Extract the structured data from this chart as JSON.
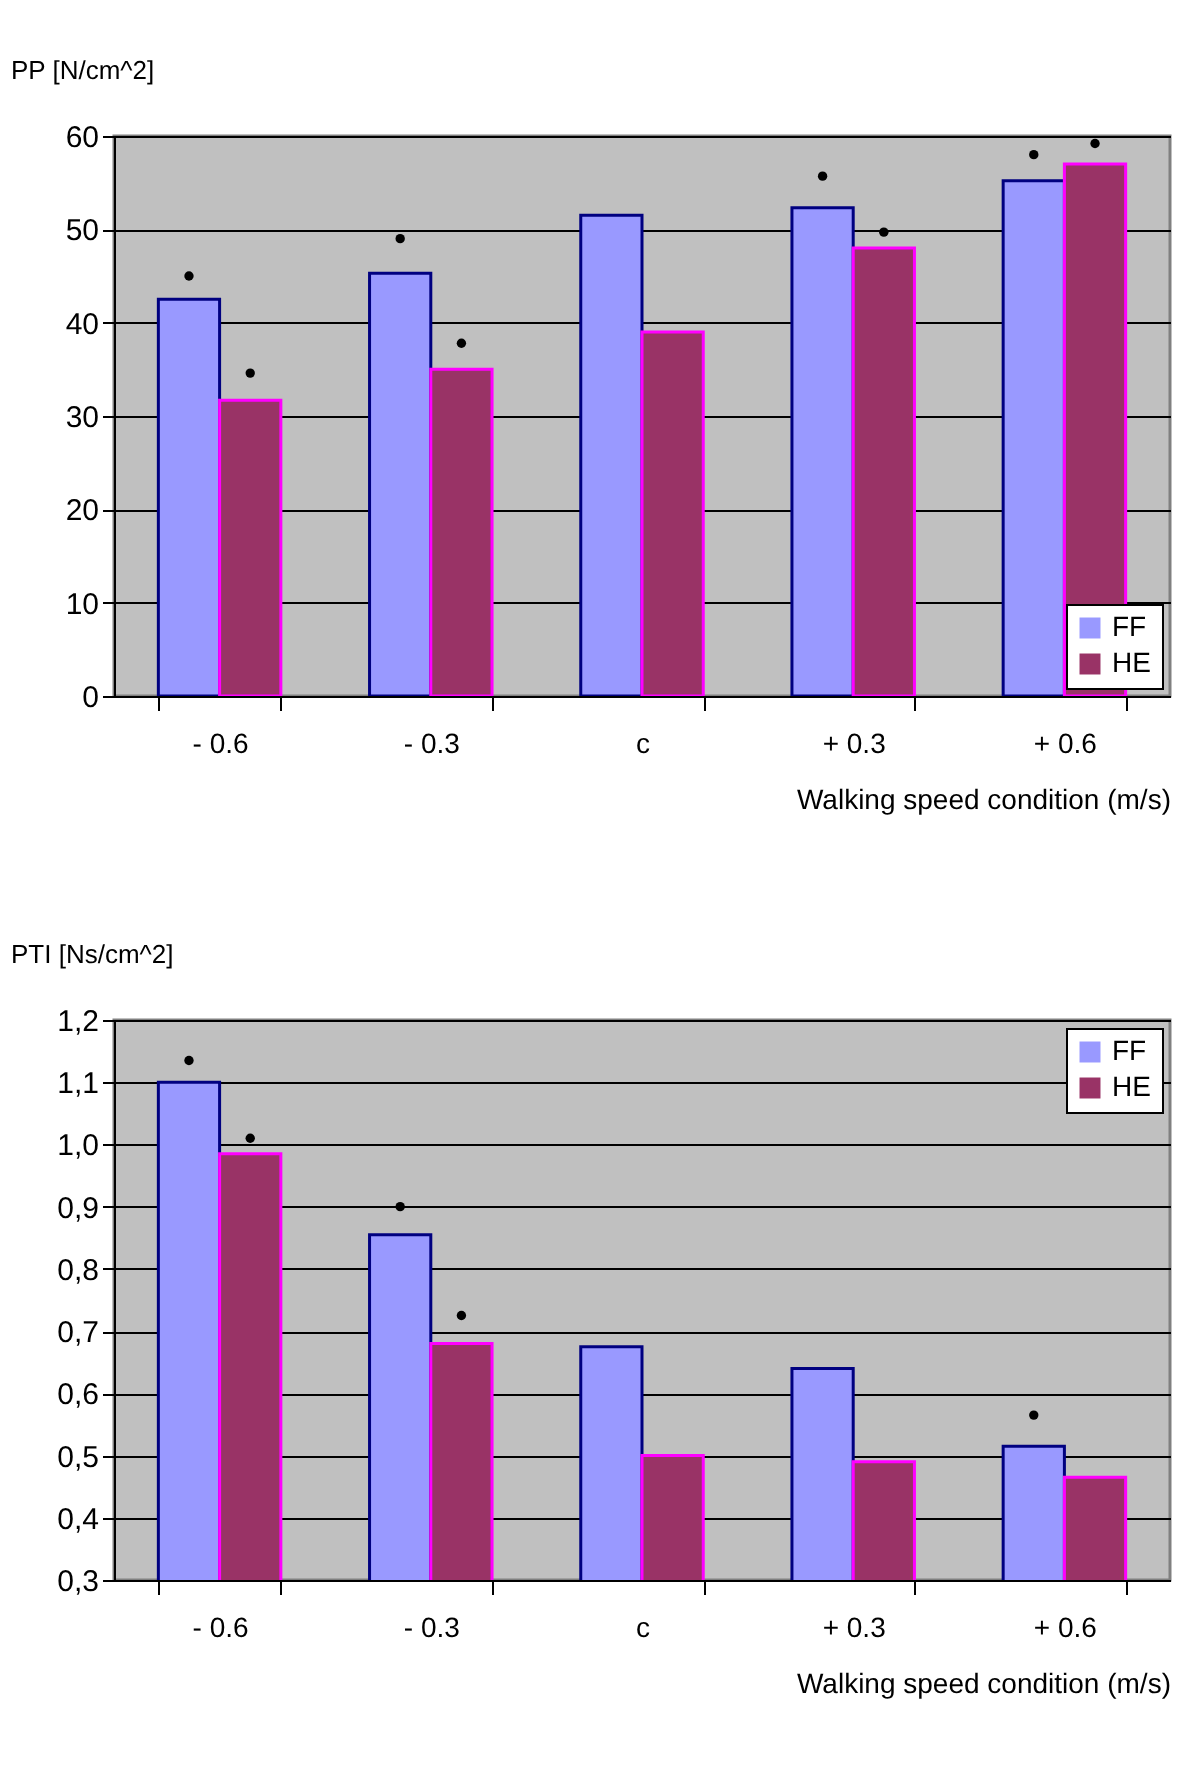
{
  "chart_data": [
    {
      "type": "bar",
      "ylabel": "PP [N/cm^2]",
      "xlabel": "Walking speed condition (m/s)",
      "categories": [
        "- 0.6",
        "- 0.3",
        "c",
        "+ 0.3",
        "+ 0.6"
      ],
      "series": [
        {
          "name": "FF",
          "color": "#9999ff",
          "values": [
            42.5,
            45.3,
            51.5,
            52.3,
            55.2
          ]
        },
        {
          "name": "HE",
          "color": "#993366",
          "values": [
            31.7,
            35,
            39,
            48,
            57
          ]
        },
        {
          "type": "scatter",
          "color": "#000000",
          "x": [
            "- 0.6",
            "- 0.3",
            "+ 0.3",
            "+ 0.6"
          ],
          "values": [
            45,
            49,
            55.7,
            58
          ]
        },
        {
          "type": "scatter",
          "color": "#000000",
          "x": [
            "- 0.6",
            "- 0.3",
            "+ 0.3",
            "+ 0.6"
          ],
          "values": [
            34.6,
            37.8,
            49.7,
            59.2
          ]
        }
      ],
      "ylim": [
        0,
        60
      ],
      "yticks": [
        0,
        10,
        20,
        30,
        40,
        50,
        60
      ],
      "grid": "y",
      "legend": "bottom right",
      "marker": "circle"
    },
    {
      "type": "bar",
      "ylabel": "PTI [Ns/cm^2]",
      "xlabel": "Walking speed condition (m/s)",
      "categories": [
        "- 0.6",
        "- 0.3",
        "c",
        "+ 0.3",
        "+ 0.6"
      ],
      "series": [
        {
          "name": "FF",
          "color": "#9999ff",
          "values": [
            1.1,
            0.855,
            0.675,
            0.64,
            0.515
          ]
        },
        {
          "name": "HE",
          "color": "#993366",
          "values": [
            0.985,
            0.68,
            0.5,
            0.49,
            0.465
          ]
        },
        {
          "type": "scatter",
          "color": "#000000",
          "x": [
            "- 0.6",
            "- 0.3",
            "+ 0.6"
          ],
          "values": [
            1.135,
            0.9,
            0.565
          ]
        },
        {
          "type": "scatter",
          "color": "#000000",
          "x": [
            "- 0.6",
            "- 0.3"
          ],
          "values": [
            1.01,
            0.725
          ]
        }
      ],
      "ylim": [
        0.3,
        1.2
      ],
      "yticks": [
        {
          "value": 0.3,
          "label": "0,3"
        },
        {
          "value": 0.4,
          "label": "0,4"
        },
        {
          "value": 0.5,
          "label": "0,5"
        },
        {
          "value": 0.6,
          "label": "0,6"
        },
        {
          "value": 0.7,
          "label": "0,7"
        },
        {
          "value": 0.8,
          "label": "0,8"
        },
        {
          "value": 0.9,
          "label": "0,9"
        },
        {
          "value": 1.0,
          "label": "1,0"
        },
        {
          "value": 1.1,
          "label": "1,1"
        },
        {
          "value": 1.2,
          "label": "1,2"
        }
      ],
      "grid": "y",
      "legend": "top right",
      "marker": "circle"
    }
  ]
}
